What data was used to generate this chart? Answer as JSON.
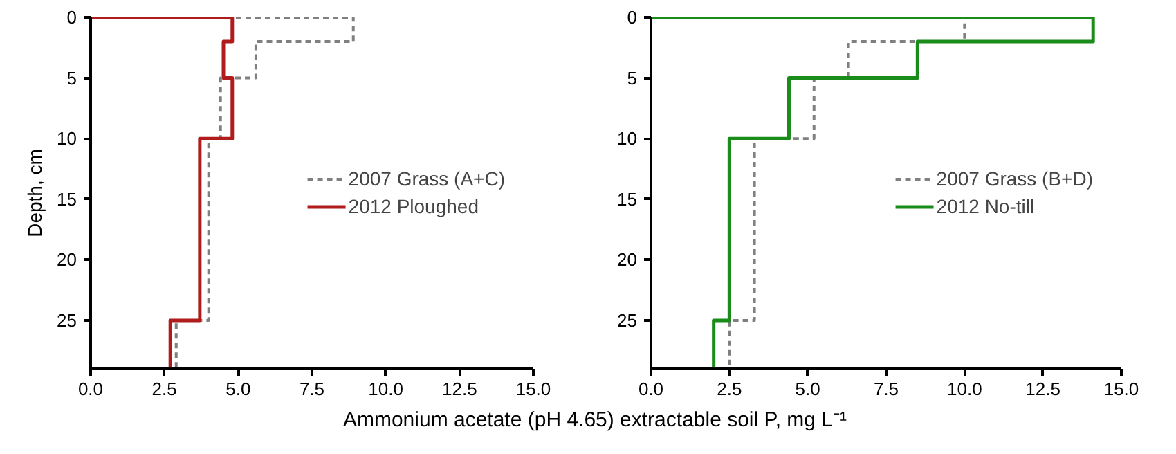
{
  "chart_data": [
    {
      "type": "line",
      "ylabel": "Depth, cm",
      "xlabel": "Ammonium acetate (pH 4.65) extractable soil P, mg L⁻¹",
      "xlim": [
        0,
        15
      ],
      "xticks": [
        {
          "value": 0,
          "label": "0.0"
        },
        {
          "value": 2.5,
          "label": "2.5"
        },
        {
          "value": 5,
          "label": "5.0"
        },
        {
          "value": 7.5,
          "label": "7.5"
        },
        {
          "value": 10,
          "label": "10.0"
        },
        {
          "value": 12.5,
          "label": "12.5"
        },
        {
          "value": 15,
          "label": "15.0"
        }
      ],
      "ylim": [
        29,
        0
      ],
      "yticks": [
        0,
        5,
        10,
        15,
        20,
        25
      ],
      "grid": false,
      "legend": "right",
      "marker": "none",
      "series": [
        {
          "name": "2007 Grass (A+C)",
          "color": "#808080",
          "line_style": "dashed",
          "x": [
            0,
            8.9,
            8.9,
            5.6,
            5.6,
            4.4,
            4.4,
            4.0,
            4.0,
            2.9,
            2.9
          ],
          "values": [
            0,
            0,
            2,
            2,
            5,
            5,
            10,
            10,
            25,
            25,
            29
          ]
        },
        {
          "name": "2012 Ploughed",
          "color": "#b01c1c",
          "line_style": "solid",
          "x": [
            0,
            4.8,
            4.8,
            4.5,
            4.5,
            4.8,
            4.8,
            3.7,
            3.7,
            2.7,
            2.7
          ],
          "values": [
            0,
            0,
            2,
            2,
            5,
            5,
            10,
            10,
            25,
            25,
            29
          ]
        }
      ]
    },
    {
      "type": "line",
      "xlim": [
        0,
        15
      ],
      "xticks": [
        {
          "value": 0,
          "label": "0.0"
        },
        {
          "value": 2.5,
          "label": "2.5"
        },
        {
          "value": 5,
          "label": "5.0"
        },
        {
          "value": 7.5,
          "label": "7.5"
        },
        {
          "value": 10,
          "label": "10.0"
        },
        {
          "value": 12.5,
          "label": "12.5"
        },
        {
          "value": 15,
          "label": "15.0"
        }
      ],
      "ylim": [
        29,
        0
      ],
      "yticks": [
        0,
        5,
        10,
        15,
        20,
        25
      ],
      "grid": false,
      "legend": "right",
      "marker": "none",
      "series": [
        {
          "name": "2007 Grass (B+D)",
          "color": "#808080",
          "line_style": "dashed",
          "x": [
            0,
            10.0,
            10.0,
            6.3,
            6.3,
            5.2,
            5.2,
            3.3,
            3.3,
            2.5,
            2.5
          ],
          "values": [
            0,
            0,
            2,
            2,
            5,
            5,
            10,
            10,
            25,
            25,
            29
          ]
        },
        {
          "name": "2012 No-till",
          "color": "#1a8c1a",
          "line_style": "solid",
          "x": [
            0,
            14.1,
            14.1,
            8.5,
            8.5,
            4.4,
            4.4,
            2.5,
            2.5,
            2.0,
            2.0
          ],
          "values": [
            0,
            0,
            2,
            2,
            5,
            5,
            10,
            10,
            25,
            25,
            29
          ]
        }
      ]
    }
  ]
}
